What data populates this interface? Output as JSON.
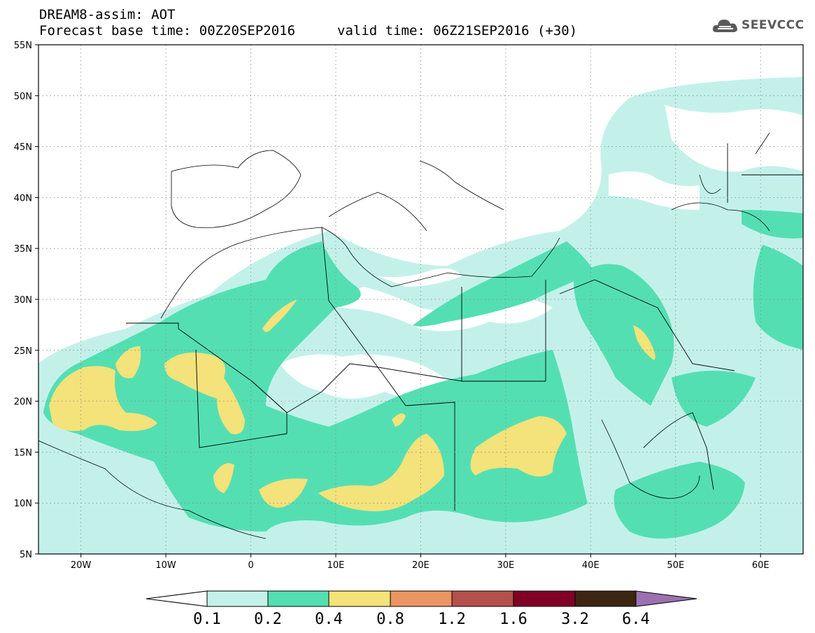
{
  "header": {
    "title_line1": "DREAM8-assim: AOT",
    "title_line2": "Forecast base time: 00Z20SEP2016",
    "valid_time": "valid time: 06Z21SEP2016 (+30)",
    "logo_text": "SEEVCCC"
  },
  "map": {
    "lon_range": [
      -25,
      65
    ],
    "lat_range": [
      5,
      55
    ],
    "lat_ticks": [
      "55N",
      "50N",
      "45N",
      "40N",
      "35N",
      "30N",
      "25N",
      "20N",
      "15N",
      "10N",
      "5N"
    ],
    "lon_ticks": [
      "20W",
      "10W",
      "0",
      "10E",
      "20E",
      "30E",
      "40E",
      "50E",
      "60E"
    ],
    "grid": "dotted"
  },
  "colorbar": {
    "labels": [
      "0.1",
      "0.2",
      "0.4",
      "0.8",
      "1.2",
      "1.6",
      "3.2",
      "6.4"
    ],
    "colors": [
      "#ffffff",
      "#c3f1ea",
      "#54dfb2",
      "#f4e27a",
      "#eb9464",
      "#b3514a",
      "#800026",
      "#3c2611",
      "#9c71b0"
    ]
  },
  "colors": {
    "level_0_1": "#c3f1ea",
    "level_0_2": "#54dfb2",
    "level_0_4": "#f4e27a",
    "level_0_8": "#eb9464"
  }
}
